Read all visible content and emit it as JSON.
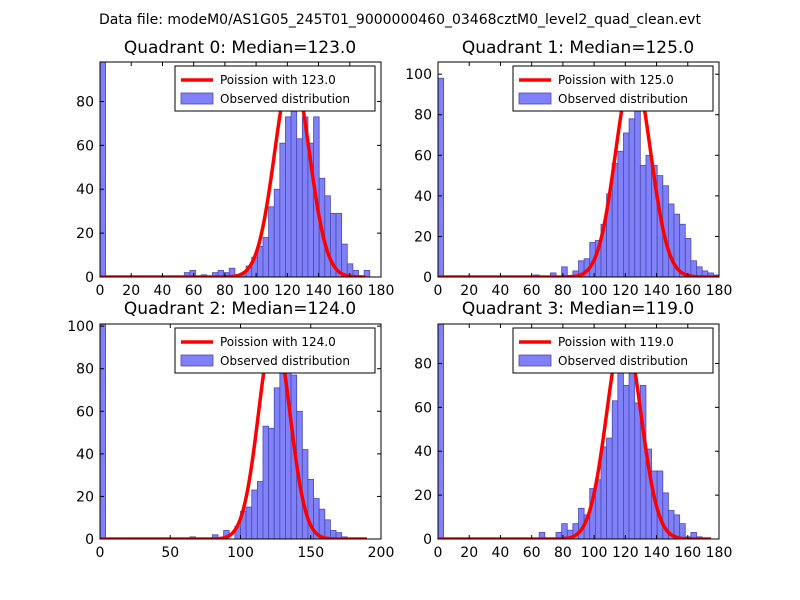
{
  "figure": {
    "title": "Data file: modeM0/AS1G05_245T01_9000000460_03468cztM0_level2_quad_clean.evt"
  },
  "colors": {
    "bar_fill": "#8080f8",
    "bar_edge": "#4a4ab0",
    "line": "#ff0000",
    "axis": "#000000"
  },
  "chart_data": [
    {
      "type": "bar",
      "title": "Quadrant 0: Median=123.0",
      "xlim": [
        0,
        180
      ],
      "ylim": [
        0,
        98
      ],
      "xticks": [
        0,
        20,
        40,
        60,
        80,
        100,
        120,
        140,
        160,
        180
      ],
      "yticks": [
        0,
        20,
        40,
        60,
        80
      ],
      "bin_width": 3.6,
      "bins": [
        [
          0,
          98
        ],
        [
          36,
          0
        ],
        [
          54,
          2
        ],
        [
          57.6,
          3
        ],
        [
          64.8,
          1
        ],
        [
          72,
          2
        ],
        [
          75.6,
          3
        ],
        [
          79.2,
          2
        ],
        [
          82.8,
          4
        ],
        [
          86.4,
          1
        ],
        [
          90,
          1
        ],
        [
          93.6,
          5
        ],
        [
          97.2,
          9
        ],
        [
          100.8,
          14
        ],
        [
          104.4,
          18
        ],
        [
          108,
          32
        ],
        [
          111.6,
          40
        ],
        [
          115.2,
          61
        ],
        [
          118.8,
          73
        ],
        [
          122.4,
          81
        ],
        [
          126,
          63
        ],
        [
          129.6,
          73
        ],
        [
          133.2,
          61
        ],
        [
          136.8,
          73
        ],
        [
          140.4,
          45
        ],
        [
          144,
          37
        ],
        [
          147.6,
          29
        ],
        [
          151.2,
          29
        ],
        [
          154.8,
          15
        ],
        [
          158.4,
          6
        ],
        [
          162,
          3
        ],
        [
          169.2,
          3
        ]
      ],
      "poisson": {
        "label": "Poission with 123.0",
        "lambda": 123.0,
        "peak": 94,
        "xrange": [
          0,
          170
        ]
      },
      "legend": {
        "poisson": "Poission with 123.0",
        "observed": "Observed distribution"
      }
    },
    {
      "type": "bar",
      "title": "Quadrant 1: Median=125.0",
      "xlim": [
        0,
        180
      ],
      "ylim": [
        0,
        106
      ],
      "xticks": [
        0,
        20,
        40,
        60,
        80,
        100,
        120,
        140,
        160,
        180
      ],
      "yticks": [
        0,
        20,
        40,
        60,
        80,
        100
      ],
      "bin_width": 3.6,
      "bins": [
        [
          0,
          98
        ],
        [
          43.2,
          0
        ],
        [
          61.2,
          1
        ],
        [
          72,
          2
        ],
        [
          79.2,
          5
        ],
        [
          86.4,
          3
        ],
        [
          90,
          8
        ],
        [
          93.6,
          9
        ],
        [
          97.2,
          17
        ],
        [
          100.8,
          18
        ],
        [
          104.4,
          26
        ],
        [
          108,
          41
        ],
        [
          111.6,
          56
        ],
        [
          115.2,
          62
        ],
        [
          118.8,
          71
        ],
        [
          122.4,
          78
        ],
        [
          126,
          97
        ],
        [
          129.6,
          55
        ],
        [
          133.2,
          60
        ],
        [
          136.8,
          55
        ],
        [
          140.4,
          50
        ],
        [
          144,
          45
        ],
        [
          147.6,
          36
        ],
        [
          151.2,
          31
        ],
        [
          154.8,
          26
        ],
        [
          158.4,
          19
        ],
        [
          162,
          8
        ],
        [
          165.6,
          5
        ],
        [
          169.2,
          3
        ],
        [
          172.8,
          2
        ],
        [
          176.4,
          1
        ]
      ],
      "poisson": {
        "label": "Poission with 125.0",
        "lambda": 125.0,
        "peak": 102,
        "xrange": [
          0,
          180
        ]
      },
      "legend": {
        "poisson": "Poission with 125.0",
        "observed": "Observed distribution"
      }
    },
    {
      "type": "bar",
      "title": "Quadrant 2: Median=124.0",
      "xlim": [
        0,
        200
      ],
      "ylim": [
        0,
        101
      ],
      "xticks": [
        0,
        50,
        100,
        150,
        200
      ],
      "yticks": [
        0,
        20,
        40,
        60,
        80,
        100
      ],
      "bin_width": 4,
      "bins": [
        [
          0,
          101
        ],
        [
          40,
          0
        ],
        [
          64,
          1
        ],
        [
          80,
          2
        ],
        [
          88,
          4
        ],
        [
          96,
          6
        ],
        [
          100,
          13
        ],
        [
          104,
          15
        ],
        [
          108,
          23
        ],
        [
          112,
          27
        ],
        [
          116,
          53
        ],
        [
          120,
          52
        ],
        [
          124,
          71
        ],
        [
          128,
          82
        ],
        [
          132,
          82
        ],
        [
          136,
          77
        ],
        [
          140,
          60
        ],
        [
          144,
          42
        ],
        [
          148,
          28
        ],
        [
          152,
          19
        ],
        [
          156,
          14
        ],
        [
          160,
          9
        ],
        [
          164,
          4
        ],
        [
          168,
          3
        ],
        [
          172,
          1
        ]
      ],
      "poisson": {
        "label": "Poission with 124.0",
        "lambda": 124.0,
        "peak": 98,
        "xrange": [
          0,
          190
        ]
      },
      "legend": {
        "poisson": "Poission with 124.0",
        "observed": "Observed distribution"
      }
    },
    {
      "type": "bar",
      "title": "Quadrant 3: Median=119.0",
      "xlim": [
        0,
        180
      ],
      "ylim": [
        0,
        98
      ],
      "xticks": [
        0,
        20,
        40,
        60,
        80,
        100,
        120,
        140,
        160,
        180
      ],
      "yticks": [
        0,
        20,
        40,
        60,
        80
      ],
      "bin_width": 3.6,
      "bins": [
        [
          0,
          98
        ],
        [
          39.6,
          0
        ],
        [
          64.8,
          3
        ],
        [
          75.6,
          3
        ],
        [
          79.2,
          7
        ],
        [
          82.8,
          4
        ],
        [
          86.4,
          7
        ],
        [
          90,
          14
        ],
        [
          93.6,
          11
        ],
        [
          97.2,
          23
        ],
        [
          100.8,
          27
        ],
        [
          104.4,
          42
        ],
        [
          108,
          46
        ],
        [
          111.6,
          63
        ],
        [
          115.2,
          81
        ],
        [
          118.8,
          70
        ],
        [
          122.4,
          77
        ],
        [
          126,
          62
        ],
        [
          129.6,
          70
        ],
        [
          133.2,
          41
        ],
        [
          136.8,
          31
        ],
        [
          140.4,
          31
        ],
        [
          144,
          21
        ],
        [
          147.6,
          13
        ],
        [
          151.2,
          11
        ],
        [
          154.8,
          7
        ],
        [
          158.4,
          1
        ],
        [
          162,
          3
        ],
        [
          165.6,
          1
        ]
      ],
      "poisson": {
        "label": "Poission with 119.0",
        "lambda": 119.0,
        "peak": 95,
        "xrange": [
          0,
          175
        ]
      },
      "legend": {
        "poisson": "Poission with 119.0",
        "observed": "Observed distribution"
      }
    }
  ]
}
